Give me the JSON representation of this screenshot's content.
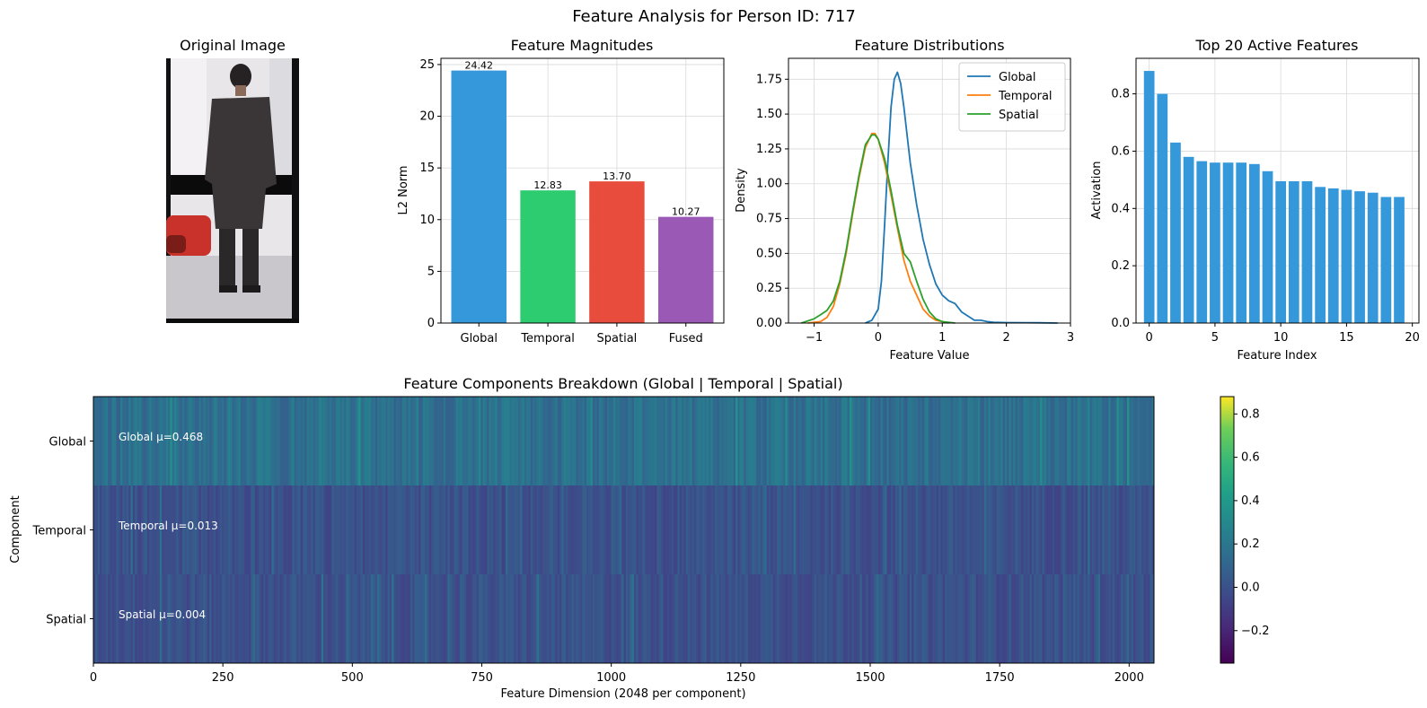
{
  "suptitle": "Feature Analysis for Person ID: 717",
  "panels": {
    "image": {
      "title": "Original Image"
    }
  },
  "chart_data": [
    {
      "id": "magnitudes",
      "type": "bar",
      "title": "Feature Magnitudes",
      "xlabel": "",
      "ylabel": "L2 Norm",
      "categories": [
        "Global",
        "Temporal",
        "Spatial",
        "Fused"
      ],
      "values": [
        24.42,
        12.83,
        13.7,
        10.27
      ],
      "value_labels": [
        "24.42",
        "12.83",
        "13.70",
        "10.27"
      ],
      "colors": [
        "#3498db",
        "#2ecc71",
        "#e74c3c",
        "#9b59b6"
      ],
      "ylim": [
        0,
        25.6
      ],
      "yticks": [
        0,
        5,
        10,
        15,
        20,
        25
      ],
      "grid": true
    },
    {
      "id": "distributions",
      "type": "line",
      "title": "Feature Distributions",
      "xlabel": "Feature Value",
      "ylabel": "Density",
      "xlim": [
        -1.4,
        3.0
      ],
      "ylim": [
        0,
        1.9
      ],
      "xticks": [
        -1,
        0,
        1,
        2,
        3
      ],
      "xtick_labels": [
        "−1",
        "0",
        "1",
        "2",
        "3"
      ],
      "yticks": [
        0.0,
        0.25,
        0.5,
        0.75,
        1.0,
        1.25,
        1.5,
        1.75
      ],
      "ytick_labels": [
        "0.00",
        "0.25",
        "0.50",
        "0.75",
        "1.00",
        "1.25",
        "1.50",
        "1.75"
      ],
      "grid": true,
      "legend": "top-right",
      "series": [
        {
          "name": "Global",
          "color": "#1f77b4",
          "x": [
            -0.2,
            -0.1,
            0.0,
            0.05,
            0.1,
            0.15,
            0.2,
            0.25,
            0.3,
            0.35,
            0.4,
            0.5,
            0.6,
            0.7,
            0.8,
            0.9,
            1.0,
            1.1,
            1.2,
            1.3,
            1.5,
            1.6,
            1.7,
            1.8,
            2.0,
            2.5,
            2.8
          ],
          "y": [
            0.0,
            0.02,
            0.1,
            0.3,
            0.7,
            1.15,
            1.55,
            1.75,
            1.8,
            1.72,
            1.55,
            1.15,
            0.85,
            0.6,
            0.42,
            0.28,
            0.2,
            0.16,
            0.14,
            0.08,
            0.02,
            0.02,
            0.01,
            0.005,
            0.003,
            0.002,
            0.0
          ]
        },
        {
          "name": "Temporal",
          "color": "#ff7f0e",
          "x": [
            -1.1,
            -0.9,
            -0.8,
            -0.7,
            -0.6,
            -0.5,
            -0.4,
            -0.3,
            -0.2,
            -0.1,
            -0.05,
            0.0,
            0.1,
            0.2,
            0.3,
            0.4,
            0.5,
            0.6,
            0.7,
            0.8,
            0.9,
            1.0,
            1.1
          ],
          "y": [
            0.0,
            0.01,
            0.04,
            0.12,
            0.28,
            0.5,
            0.78,
            1.04,
            1.26,
            1.36,
            1.36,
            1.32,
            1.15,
            0.92,
            0.68,
            0.45,
            0.3,
            0.2,
            0.1,
            0.05,
            0.02,
            0.01,
            0.0
          ]
        },
        {
          "name": "Spatial",
          "color": "#2ca02c",
          "x": [
            -1.2,
            -1.0,
            -0.9,
            -0.8,
            -0.7,
            -0.6,
            -0.5,
            -0.4,
            -0.3,
            -0.2,
            -0.1,
            -0.05,
            0.0,
            0.1,
            0.2,
            0.3,
            0.4,
            0.5,
            0.6,
            0.7,
            0.8,
            0.9,
            1.0,
            1.2
          ],
          "y": [
            0.0,
            0.03,
            0.06,
            0.09,
            0.16,
            0.3,
            0.52,
            0.8,
            1.06,
            1.28,
            1.35,
            1.35,
            1.32,
            1.18,
            0.95,
            0.7,
            0.5,
            0.44,
            0.3,
            0.17,
            0.08,
            0.03,
            0.01,
            0.0
          ]
        }
      ]
    },
    {
      "id": "top20",
      "type": "bar",
      "title": "Top 20 Active Features",
      "xlabel": "Feature Index",
      "ylabel": "Activation",
      "x": [
        0,
        1,
        2,
        3,
        4,
        5,
        6,
        7,
        8,
        9,
        10,
        11,
        12,
        13,
        14,
        15,
        16,
        17,
        18,
        19
      ],
      "values": [
        0.88,
        0.8,
        0.63,
        0.58,
        0.565,
        0.56,
        0.56,
        0.56,
        0.555,
        0.53,
        0.495,
        0.495,
        0.495,
        0.475,
        0.47,
        0.465,
        0.46,
        0.455,
        0.44,
        0.44
      ],
      "color": "#3498db",
      "xlim": [
        -1,
        20.5
      ],
      "ylim": [
        0,
        0.924
      ],
      "xticks": [
        0,
        5,
        10,
        15,
        20
      ],
      "yticks": [
        0.0,
        0.2,
        0.4,
        0.6,
        0.8
      ],
      "ytick_labels": [
        "0.0",
        "0.2",
        "0.4",
        "0.6",
        "0.8"
      ],
      "grid": true
    },
    {
      "id": "components",
      "type": "heatmap",
      "title": "Feature Components Breakdown (Global | Temporal | Spatial)",
      "xlabel": "Feature Dimension (2048 per component)",
      "ylabel": "Component",
      "rows": [
        "Global",
        "Temporal",
        "Spatial"
      ],
      "row_means": [
        0.468,
        0.013,
        0.004
      ],
      "row_annotations": [
        "Global μ=0.468",
        "Temporal μ=0.013",
        "Spatial μ=0.004"
      ],
      "columns": 2048,
      "xlim": [
        0,
        2048
      ],
      "xticks": [
        0,
        250,
        500,
        750,
        1000,
        1250,
        1500,
        1750,
        2000
      ],
      "colormap": "viridis",
      "vmin": -0.35,
      "vmax": 0.88,
      "colorbar_ticks": [
        -0.2,
        0.0,
        0.2,
        0.4,
        0.6,
        0.8
      ],
      "colorbar_tick_labels": [
        "−0.2",
        "0.0",
        "0.2",
        "0.4",
        "0.6",
        "0.8"
      ]
    }
  ]
}
